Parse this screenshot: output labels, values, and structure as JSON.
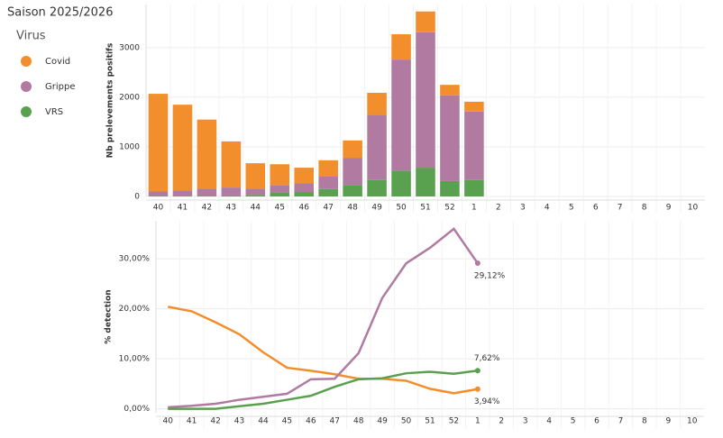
{
  "title": "Saison 2025/2026",
  "chart_data": [
    {
      "type": "bar",
      "stacked": true,
      "legend_title": "Virus",
      "ylabel": "Nb prelevements positifs",
      "categories": [
        "40",
        "41",
        "42",
        "43",
        "44",
        "45",
        "46",
        "47",
        "48",
        "49",
        "50",
        "51",
        "52",
        "1",
        "2",
        "3",
        "4",
        "5",
        "6",
        "7",
        "8",
        "9",
        "10"
      ],
      "series": [
        {
          "name": "Covid",
          "color": "#f28e2b",
          "values": [
            1970,
            1730,
            1390,
            930,
            510,
            420,
            310,
            330,
            350,
            440,
            510,
            420,
            210,
            200,
            null,
            null,
            null,
            null,
            null,
            null,
            null,
            null,
            null
          ]
        },
        {
          "name": "Grippe",
          "color": "#b07aa1",
          "values": [
            90,
            110,
            150,
            160,
            130,
            150,
            180,
            250,
            550,
            1320,
            2240,
            2730,
            1730,
            1380,
            null,
            null,
            null,
            null,
            null,
            null,
            null,
            null,
            null
          ]
        },
        {
          "name": "VRS",
          "color": "#59a14f",
          "values": [
            10,
            10,
            10,
            20,
            30,
            80,
            90,
            150,
            230,
            330,
            520,
            580,
            310,
            330,
            null,
            null,
            null,
            null,
            null,
            null,
            null,
            null,
            null
          ]
        }
      ],
      "ylim": [
        0,
        3870
      ],
      "yticks": [
        0,
        1000,
        2000,
        3000
      ],
      "grid": true
    },
    {
      "type": "line",
      "ylabel": "% detection",
      "categories": [
        "40",
        "41",
        "42",
        "43",
        "44",
        "45",
        "46",
        "47",
        "48",
        "49",
        "50",
        "51",
        "52",
        "1",
        "2",
        "3",
        "4",
        "5",
        "6",
        "7",
        "8",
        "9",
        "10"
      ],
      "series": [
        {
          "color": "#f28e2b",
          "values": [
            20.4,
            19.5,
            17.3,
            14.9,
            11.3,
            8.2,
            7.6,
            6.9,
            6.0,
            6.0,
            5.6,
            4.0,
            3.1,
            3.94,
            null,
            null,
            null,
            null,
            null,
            null,
            null,
            null,
            null
          ],
          "value_labels": [
            null,
            null,
            null,
            null,
            null,
            null,
            null,
            null,
            null,
            null,
            null,
            null,
            null,
            "3,94%",
            null,
            null,
            null,
            null,
            null,
            null,
            null,
            null,
            null
          ]
        },
        {
          "color": "#b07aa1",
          "values": [
            0.3,
            0.6,
            1.0,
            1.8,
            2.4,
            3.0,
            5.9,
            6.0,
            11.1,
            22.2,
            29.1,
            32.2,
            36.0,
            29.12,
            null,
            null,
            null,
            null,
            null,
            null,
            null,
            null,
            null
          ],
          "value_labels": [
            null,
            null,
            null,
            null,
            null,
            null,
            null,
            null,
            null,
            null,
            null,
            null,
            null,
            "29,12%",
            null,
            null,
            null,
            null,
            null,
            null,
            null,
            null,
            null
          ]
        },
        {
          "color": "#59a14f",
          "values": [
            0,
            0,
            0,
            0.5,
            1.0,
            1.8,
            2.6,
            4.4,
            5.9,
            6.1,
            7.1,
            7.4,
            7.0,
            7.62,
            null,
            null,
            null,
            null,
            null,
            null,
            null,
            null,
            null
          ],
          "value_labels": [
            null,
            null,
            null,
            null,
            null,
            null,
            null,
            null,
            null,
            null,
            null,
            null,
            null,
            "7,62%",
            null,
            null,
            null,
            null,
            null,
            null,
            null,
            null,
            null
          ]
        }
      ],
      "ylim": [
        -0.8,
        37.6
      ],
      "yticks": [
        {
          "value": 0,
          "label": "0,00%"
        },
        {
          "value": 10,
          "label": "10,00%"
        },
        {
          "value": 20,
          "label": "20,00%"
        },
        {
          "value": 30,
          "label": "30,00%"
        }
      ],
      "grid": true
    }
  ]
}
